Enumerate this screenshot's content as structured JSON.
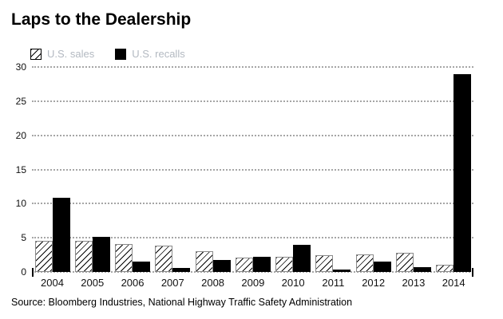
{
  "title": "Laps to the Dealership",
  "legend": {
    "sales_label": "U.S. sales",
    "recalls_label": "U.S. recalls"
  },
  "source": "Source: Bloomberg Industries, National Highway Traffic Safety Administration",
  "colors": {
    "background": "#ffffff",
    "title_text": "#000000",
    "legend_text": "#b3b9c1",
    "axis_text": "#111111",
    "gridline": "#a6a6a6",
    "recalls_bar": "#000000",
    "sales_bar_fill": "#ffffff",
    "sales_bar_hatch": "#000000",
    "sales_bar_border": "#8a8a8a"
  },
  "chart_data": {
    "type": "bar",
    "categories": [
      "2004",
      "2005",
      "2006",
      "2007",
      "2008",
      "2009",
      "2010",
      "2011",
      "2012",
      "2013",
      "2014"
    ],
    "series": [
      {
        "name": "U.S. sales",
        "style": "hatched",
        "values": [
          4.6,
          4.5,
          4.1,
          3.9,
          3.0,
          2.1,
          2.2,
          2.5,
          2.6,
          2.8,
          1.1
        ]
      },
      {
        "name": "U.S. recalls",
        "style": "solid-black",
        "values": [
          10.9,
          5.1,
          1.5,
          0.6,
          1.8,
          2.2,
          4.0,
          0.4,
          1.5,
          0.7,
          29.0
        ]
      }
    ],
    "title": "Laps to the Dealership",
    "xlabel": "",
    "ylabel": "",
    "ylim": [
      0,
      30
    ],
    "yticks": [
      0,
      5,
      10,
      15,
      20,
      25,
      30
    ],
    "grid": "dotted-horizontal",
    "legend_position": "top-left"
  }
}
